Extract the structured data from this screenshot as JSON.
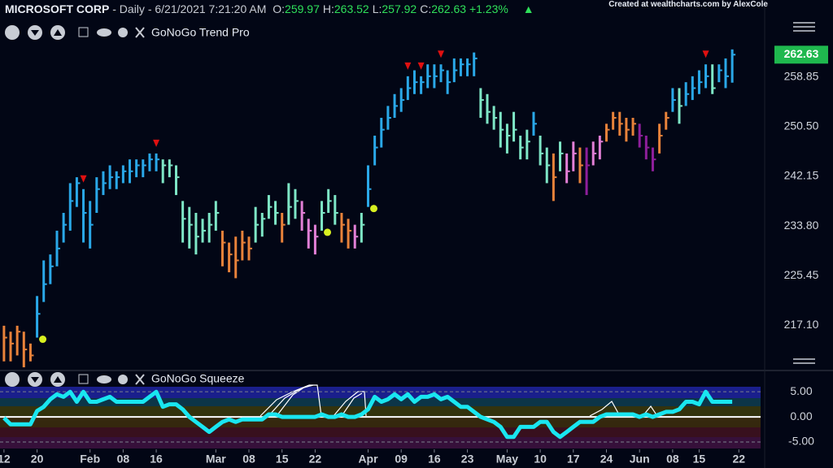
{
  "header": {
    "symbol": "MICROSOFT CORP",
    "interval": "Daily",
    "datetime": "6/21/2021 7:21:20 AM",
    "ohlc": [
      {
        "label": "O:",
        "value": 259.97
      },
      {
        "label": "H:",
        "value": 263.52
      },
      {
        "label": "L:",
        "value": 257.92
      },
      {
        "label": "C:",
        "value": 262.63
      }
    ],
    "change": "+1.23%",
    "credit": "Created at wealthcharts.com by AlexCole"
  },
  "chart_data": [
    {
      "type": "ohlc",
      "title": "GoNoGo Trend Pro",
      "high": [
        217,
        216,
        217,
        216,
        214,
        222,
        228,
        229,
        233,
        236,
        241,
        242,
        240,
        238,
        242,
        243,
        244,
        243,
        244,
        245,
        245,
        245,
        246,
        246,
        245,
        245,
        244,
        238,
        237,
        236,
        235,
        236,
        238,
        233,
        231,
        232,
        233,
        232,
        237,
        236,
        239,
        238,
        236,
        241,
        240,
        238,
        235,
        234,
        238,
        240,
        239,
        236,
        235,
        234,
        236,
        244,
        249,
        252,
        254,
        256,
        257,
        259,
        260,
        259,
        261,
        261,
        261,
        260,
        262,
        262,
        262,
        263,
        257,
        256,
        254,
        253,
        251,
        253,
        249,
        250,
        253,
        249,
        247,
        246,
        248,
        246,
        248,
        247,
        247,
        248,
        249,
        251,
        253,
        253,
        252,
        252,
        251,
        249,
        247,
        251,
        253,
        257,
        257,
        258,
        259,
        260,
        261,
        261,
        261,
        262,
        263.52
      ],
      "low": [
        211,
        211,
        212,
        210,
        211,
        215,
        221,
        224,
        227,
        231,
        233,
        237,
        231,
        230,
        236,
        239,
        240,
        240,
        241,
        241,
        242,
        242,
        243,
        243,
        241,
        242,
        239,
        231,
        230,
        229,
        231,
        231,
        233,
        227,
        226,
        225,
        228,
        228,
        231,
        232,
        235,
        234,
        231,
        234,
        235,
        233,
        230,
        229,
        233,
        236,
        234,
        231,
        230,
        230,
        231,
        237,
        244,
        247,
        250,
        252,
        253,
        255,
        256,
        256,
        257,
        257,
        258,
        256,
        258,
        259,
        259,
        259,
        252,
        251,
        250,
        247,
        246,
        248,
        245,
        245,
        249,
        244,
        241,
        238,
        243,
        241,
        243,
        241,
        239,
        244,
        245,
        248,
        250,
        249,
        248,
        249,
        247,
        245,
        243,
        246,
        250,
        253,
        251,
        254,
        255,
        256,
        257,
        256,
        258,
        257,
        257.92
      ],
      "close": [
        215,
        214,
        216,
        213,
        212,
        219,
        224,
        227,
        230,
        234,
        238,
        241,
        236,
        234,
        240,
        241,
        242,
        242,
        243,
        243,
        244,
        244,
        245,
        245,
        244,
        244,
        242,
        235,
        234,
        232,
        233,
        234,
        236,
        231,
        229,
        228,
        231,
        230,
        234,
        235,
        237,
        236,
        234,
        237,
        238,
        236,
        233,
        232,
        236,
        238,
        236,
        234,
        233,
        232,
        234,
        240,
        247,
        250,
        252,
        254,
        255,
        257,
        258,
        258,
        259,
        259,
        260,
        258,
        260,
        261,
        261,
        262,
        255,
        253,
        252,
        250,
        249,
        250,
        247,
        248,
        251,
        246,
        244,
        242,
        246,
        243,
        246,
        244,
        244,
        246,
        248,
        250,
        252,
        251,
        250,
        251,
        249,
        247,
        245,
        249,
        252,
        255,
        254,
        256,
        257,
        258,
        259,
        257,
        260,
        259,
        262.63
      ],
      "colors": [
        "#e8823a",
        "#e8823a",
        "#e8823a",
        "#e8823a",
        "#e8823a",
        "#2aa8e8",
        "#2aa8e8",
        "#2aa8e8",
        "#2aa8e8",
        "#2aa8e8",
        "#2aa8e8",
        "#2aa8e8",
        "#2aa8e8",
        "#2aa8e8",
        "#2aa8e8",
        "#2aa8e8",
        "#2aa8e8",
        "#2aa8e8",
        "#2aa8e8",
        "#2aa8e8",
        "#2aa8e8",
        "#2aa8e8",
        "#2aa8e8",
        "#2aa8e8",
        "#7ee6c6",
        "#7ee6c6",
        "#7ee6c6",
        "#7ee6c6",
        "#7ee6c6",
        "#7ee6c6",
        "#7ee6c6",
        "#7ee6c6",
        "#7ee6c6",
        "#e8823a",
        "#e8823a",
        "#e8823a",
        "#e8823a",
        "#e8823a",
        "#7ee6c6",
        "#7ee6c6",
        "#7ee6c6",
        "#7ee6c6",
        "#e8823a",
        "#7ee6c6",
        "#7ee6c6",
        "#e27fd6",
        "#e27fd6",
        "#e27fd6",
        "#7ee6c6",
        "#7ee6c6",
        "#7ee6c6",
        "#e8823a",
        "#e8823a",
        "#e27fd6",
        "#7ee6c6",
        "#2aa8e8",
        "#2aa8e8",
        "#2aa8e8",
        "#2aa8e8",
        "#2aa8e8",
        "#2aa8e8",
        "#2aa8e8",
        "#2aa8e8",
        "#2aa8e8",
        "#2aa8e8",
        "#2aa8e8",
        "#2aa8e8",
        "#2aa8e8",
        "#2aa8e8",
        "#2aa8e8",
        "#2aa8e8",
        "#2aa8e8",
        "#7ee6c6",
        "#7ee6c6",
        "#7ee6c6",
        "#7ee6c6",
        "#7ee6c6",
        "#7ee6c6",
        "#7ee6c6",
        "#7ee6c6",
        "#2aa8e8",
        "#7ee6c6",
        "#7ee6c6",
        "#e8823a",
        "#7ee6c6",
        "#e27fd6",
        "#e27fd6",
        "#e8823a",
        "#8e1f9b",
        "#e27fd6",
        "#e27fd6",
        "#e8823a",
        "#e8823a",
        "#e8823a",
        "#e8823a",
        "#e8823a",
        "#8e1f9b",
        "#8e1f9b",
        "#8e1f9b",
        "#e8823a",
        "#e8823a",
        "#2aa8e8",
        "#7ee6c6",
        "#2aa8e8",
        "#2aa8e8",
        "#2aa8e8",
        "#2aa8e8",
        "#7ee6c6",
        "#2aa8e8",
        "#2aa8e8",
        "#2aa8e8"
      ],
      "arrows": [
        12,
        23,
        61,
        63,
        66,
        106
      ],
      "arrow_color": "#e01010",
      "dots": [
        5,
        48,
        55
      ],
      "dot_color": "#d8f020",
      "xlim": [
        -0.6,
        114.9
      ],
      "xticks": [
        {
          "value": 0,
          "label": "12"
        },
        {
          "value": 5,
          "label": "20"
        },
        {
          "value": 13,
          "label": "Feb"
        },
        {
          "value": 18,
          "label": "08"
        },
        {
          "value": 23,
          "label": "16"
        },
        {
          "value": 32,
          "label": "Mar"
        },
        {
          "value": 37,
          "label": "08"
        },
        {
          "value": 42,
          "label": "15"
        },
        {
          "value": 47,
          "label": "22"
        },
        {
          "value": 55,
          "label": "Apr"
        },
        {
          "value": 60,
          "label": "09"
        },
        {
          "value": 65,
          "label": "16"
        },
        {
          "value": 70,
          "label": "23"
        },
        {
          "value": 76,
          "label": "May"
        },
        {
          "value": 81,
          "label": "10"
        },
        {
          "value": 86,
          "label": "17"
        },
        {
          "value": 91,
          "label": "24"
        },
        {
          "value": 96,
          "label": "Jun"
        },
        {
          "value": 101,
          "label": "08"
        },
        {
          "value": 105,
          "label": "15"
        },
        {
          "value": 111,
          "label": "22"
        }
      ],
      "ylim": [
        209.6,
        269.1
      ],
      "yticks": [
        {
          "value": 217.1,
          "label": "217.10"
        },
        {
          "value": 225.45,
          "label": "225.45"
        },
        {
          "value": 233.8,
          "label": "233.80"
        },
        {
          "value": 242.15,
          "label": "242.15"
        },
        {
          "value": 250.5,
          "label": "250.50"
        },
        {
          "value": 258.85,
          "label": "258.85"
        }
      ],
      "grid": false
    },
    {
      "type": "line",
      "title": "GoNoGo Squeeze",
      "color": "#19e6f0",
      "values": [
        -0.2,
        -1.5,
        -1.5,
        -1.5,
        -1.5,
        1.2,
        2,
        3.5,
        4.5,
        4,
        5,
        3,
        5,
        3,
        3,
        3.5,
        4,
        3,
        3,
        3,
        3,
        3,
        4,
        5,
        2,
        2.5,
        2.5,
        1.5,
        0,
        -1,
        -2,
        -3,
        -2,
        -1,
        -0.5,
        -1,
        -0.5,
        -0.5,
        -0.5,
        -0.5,
        0.5,
        0.5,
        0,
        0,
        0,
        0,
        0,
        0,
        0.5,
        0,
        0,
        0.5,
        0,
        0,
        0.5,
        1.5,
        4,
        3,
        3.5,
        4.5,
        3.5,
        4.5,
        3,
        4,
        4,
        4.5,
        3.5,
        4,
        3,
        2,
        2,
        1,
        0,
        -0.5,
        -1,
        -2,
        -4,
        -4,
        -2,
        -2,
        -2,
        -1,
        -1,
        -3,
        -4,
        -3,
        -2,
        -1,
        -1,
        -1,
        0,
        0.5,
        0.5,
        0.5,
        0.5,
        0.5,
        0,
        0.5,
        0,
        0.5,
        1,
        1,
        1.5,
        3,
        3,
        2.5,
        5,
        3,
        3,
        3,
        3
      ],
      "xlim": [
        -0.6,
        114.9
      ],
      "ylim": [
        -6.3,
        6
      ],
      "yticks": [
        {
          "value": 5,
          "label": "5.00"
        },
        {
          "value": 0,
          "label": "0.00"
        },
        {
          "value": -5,
          "label": "-5.00"
        }
      ],
      "grid": true
    }
  ]
}
